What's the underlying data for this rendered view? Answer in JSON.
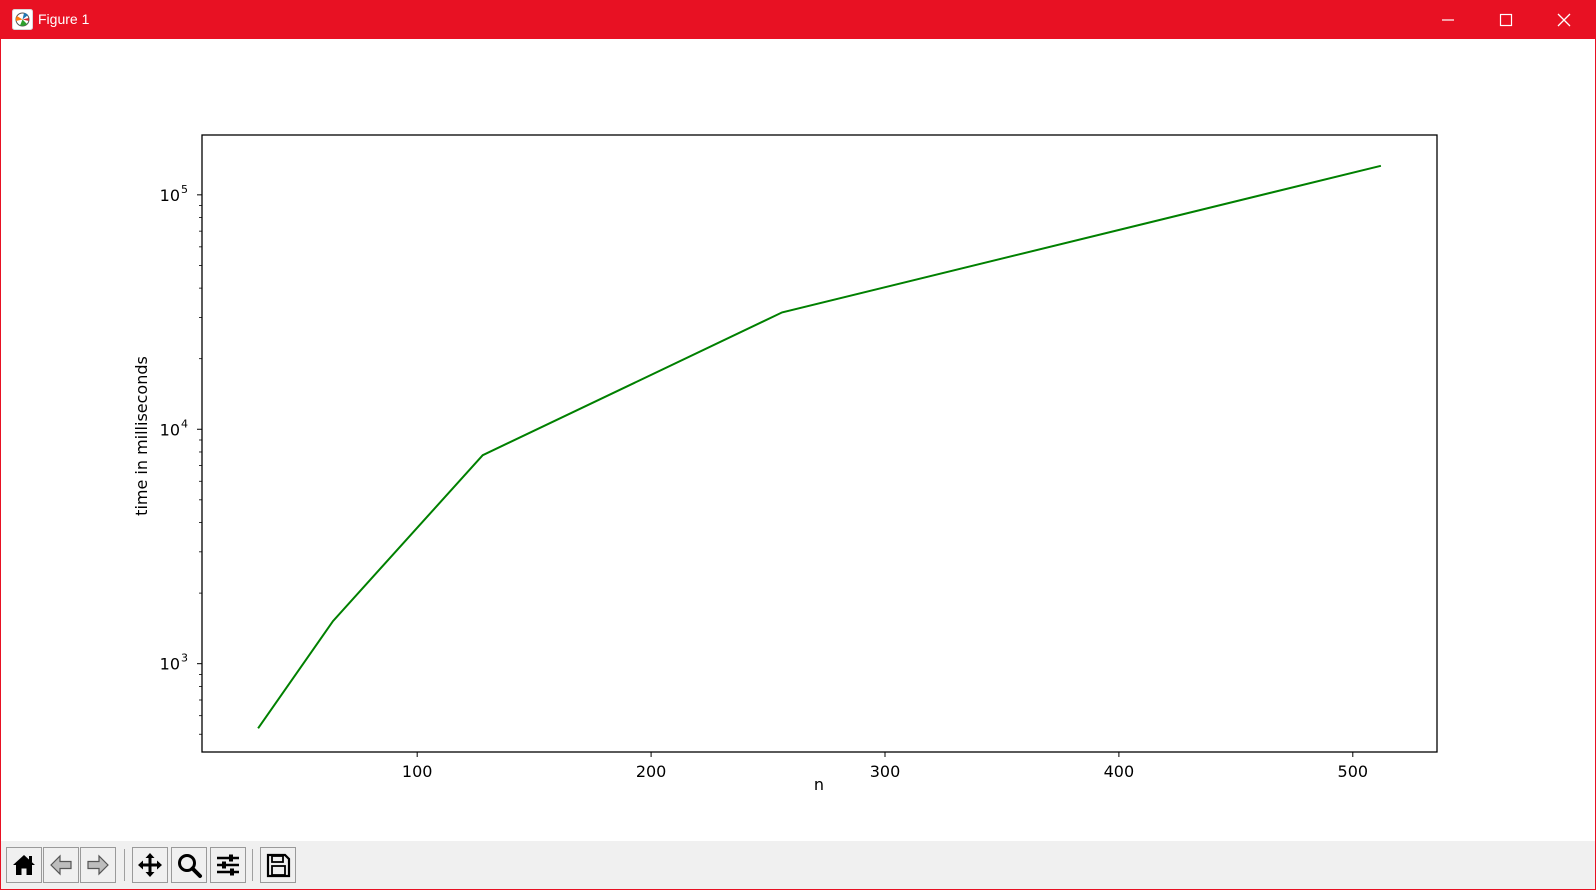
{
  "window": {
    "title": "Figure 1",
    "accent_color": "#e81123",
    "icons": {
      "app": "matplotlib-figure-icon",
      "minimize": "minimize-icon",
      "maximize": "maximize-icon",
      "close": "close-icon"
    }
  },
  "toolbar": {
    "buttons": [
      {
        "name": "home-button",
        "icon": "home-icon"
      },
      {
        "name": "back-button",
        "icon": "arrow-left-icon"
      },
      {
        "name": "forward-button",
        "icon": "arrow-right-icon"
      },
      {
        "name": "pan-button",
        "icon": "move-icon"
      },
      {
        "name": "zoom-button",
        "icon": "magnifier-icon"
      },
      {
        "name": "configure-subplots-button",
        "icon": "sliders-icon"
      },
      {
        "name": "save-button",
        "icon": "floppy-disk-icon"
      }
    ]
  },
  "chart_data": {
    "type": "line",
    "title": "",
    "xlabel": "n",
    "ylabel": "time in milliseconds",
    "yscale": "log",
    "grid": false,
    "xlim": [
      8,
      536
    ],
    "ylim": [
      420,
      180000
    ],
    "xticks": [
      100,
      200,
      300,
      400,
      500
    ],
    "xtick_labels": [
      "100",
      "200",
      "300",
      "400",
      "500"
    ],
    "yticks": [
      1000,
      10000,
      100000
    ],
    "ytick_labels": [
      {
        "base": "10",
        "exp": "3"
      },
      {
        "base": "10",
        "exp": "4"
      },
      {
        "base": "10",
        "exp": "5"
      }
    ],
    "series": [
      {
        "color": "#008000",
        "x": [
          32,
          64,
          128,
          256,
          512
        ],
        "y": [
          530,
          1520,
          7750,
          31500,
          133000
        ]
      }
    ]
  }
}
